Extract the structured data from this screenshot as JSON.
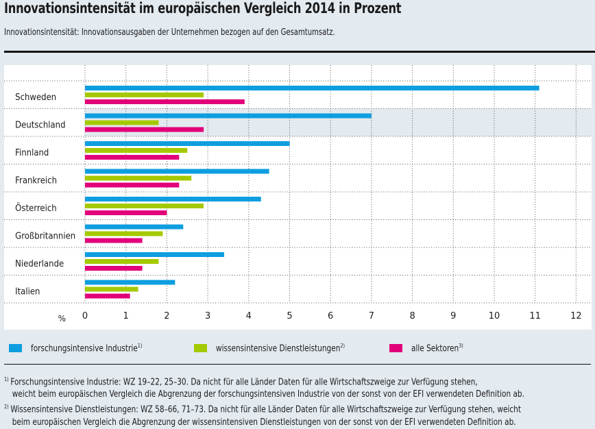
{
  "header": {
    "title": "Innovationsintensität im europäischen Vergleich 2014 in Prozent",
    "subtitle": "Innovationsintensität: Innovationsausgaben der Unternehmen bezogen auf den Gesamtumsatz."
  },
  "colors": {
    "forschungsintensive_industrie": "#0e9ee0",
    "wissensintensive_dienstleistungen": "#a5c900",
    "alle_sektoren": "#e2007a",
    "highlight_row": "#e3eaf0"
  },
  "chart_data": {
    "type": "bar",
    "orientation": "horizontal",
    "title": "Innovationsintensität im europäischen Vergleich 2014 in Prozent",
    "subtitle": "Innovationsintensität: Innovationsausgaben der Unternehmen bezogen auf den Gesamtumsatz.",
    "xlabel": "%",
    "ylabel": "",
    "xlim": [
      0,
      12
    ],
    "xticks": [
      "0",
      "1",
      "2",
      "3",
      "4",
      "5",
      "6",
      "7",
      "8",
      "9",
      "10",
      "11",
      "12"
    ],
    "grid": true,
    "highlighted_category": "Deutschland",
    "categories": [
      "Schweden",
      "Deutschland",
      "Finnland",
      "Frankreich",
      "Österreich",
      "Großbritannien",
      "Niederlande",
      "Italien"
    ],
    "series": [
      {
        "name": "forschungsintensive Industrie",
        "footnote": "1)",
        "color": "#0e9ee0",
        "values": [
          11.1,
          7.0,
          5.0,
          4.5,
          4.3,
          2.4,
          3.4,
          2.2
        ]
      },
      {
        "name": "wissensintensive Dienstleistungen",
        "footnote": "2)",
        "color": "#a5c900",
        "values": [
          2.9,
          1.8,
          2.5,
          2.6,
          2.9,
          1.9,
          1.8,
          1.3
        ]
      },
      {
        "name": "alle Sektoren",
        "footnote": "3)",
        "color": "#e2007a",
        "values": [
          3.9,
          2.9,
          2.3,
          2.3,
          2.0,
          1.4,
          1.4,
          1.1
        ]
      }
    ],
    "legend_position": "bottom"
  },
  "legend": [
    {
      "label": "forschungsintensive Industrie",
      "sup": "1)"
    },
    {
      "label": "wissensintensive Dienstleistungen",
      "sup": "2)"
    },
    {
      "label": "alle Sektoren",
      "sup": "3)"
    }
  ],
  "footnotes": [
    {
      "marker": "1)",
      "line1": "Forschungsintensive Industrie: WZ 19–22, 25–30. Da nicht für alle Länder Daten für alle Wirtschaftszweige zur Verfügung stehen,",
      "line2": "weicht beim europäischen Vergleich die Abgrenzung der forschungsintensiven Industrie von der sonst von der EFI verwendeten Definition ab."
    },
    {
      "marker": "2)",
      "line1": "Wissensintensive Dienstleistungen: WZ 58–66, 71–73. Da nicht für alle Länder Daten für alle Wirtschaftszweige zur Verfügung stehen, weicht",
      "line2": "beim europäischen Vergleich die Abgrenzung der wissensintensiven Dienstleistungen von der sonst von der EFI verwendeten Definition ab."
    }
  ]
}
